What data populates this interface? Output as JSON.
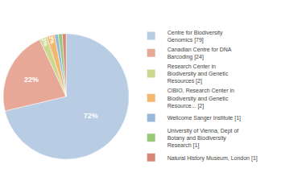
{
  "chart_data": {
    "type": "pie",
    "categories": [
      "Centre for Biodiversity\nGenomics [79]",
      "Canadian Centre for DNA\nBarcoding [24]",
      "Research Center in\nBiodiversity and Genetic\nResources [2]",
      "CIBIO, Research Center in\nBiodiversity and Genetic\nResource... [2]",
      "Wellcome Sanger Institute [1]",
      "University of Vienna, Dept of\nBotany and Biodiversity\nResearch [1]",
      "Natural History Museum, London [1]"
    ],
    "values": [
      72,
      22,
      2,
      2,
      1,
      1,
      1
    ],
    "value_labels": [
      "72%",
      "22%",
      "2%",
      "2%",
      null,
      null,
      null
    ],
    "colors": [
      "#b8cce4",
      "#e8a898",
      "#ccd890",
      "#f0b870",
      "#98b8d8",
      "#98c878",
      "#d88878"
    ],
    "data_labels": true,
    "legend": "right"
  }
}
